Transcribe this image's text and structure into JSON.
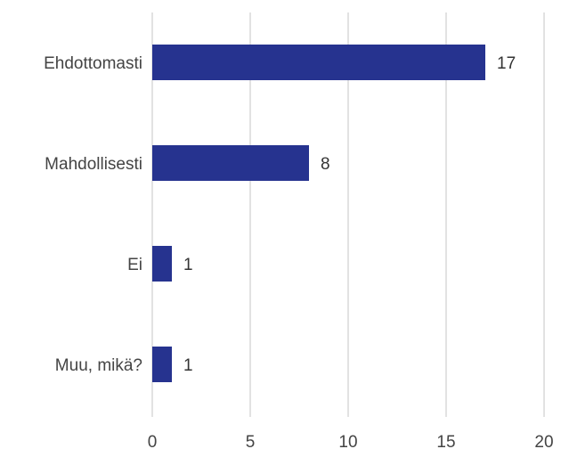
{
  "chart_data": {
    "type": "bar",
    "orientation": "horizontal",
    "categories": [
      "Ehdottomasti",
      "Mahdollisesti",
      "Ei",
      "Muu, mikä?"
    ],
    "values": [
      17,
      8,
      1,
      1
    ],
    "xlim": [
      0,
      20
    ],
    "xticks": [
      0,
      5,
      10,
      15,
      20
    ],
    "grid": "vertical",
    "bar_color": "#26338f",
    "grid_color": "#d9d9d9",
    "title": "",
    "xlabel": "",
    "ylabel": ""
  }
}
